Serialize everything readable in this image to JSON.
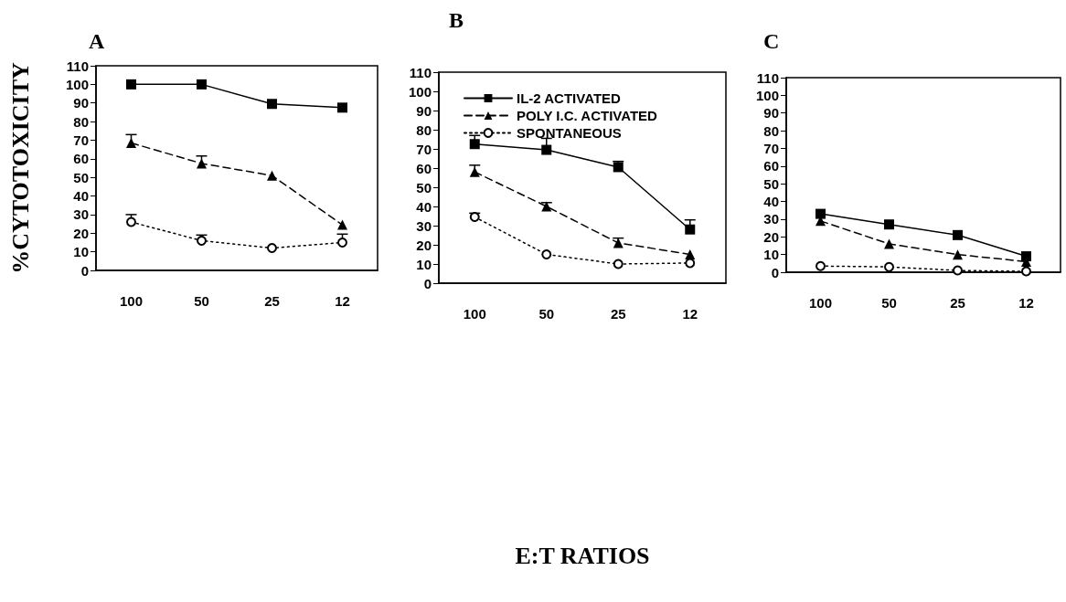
{
  "chart_data": [
    {
      "type": "line",
      "title": "A",
      "ylabel": "%CYTOTOXICITY",
      "categories": [
        "100",
        "50",
        "25",
        "12"
      ],
      "ylim": [
        0,
        110
      ],
      "yticks": [
        0,
        10,
        20,
        30,
        40,
        50,
        60,
        70,
        80,
        90,
        100,
        110
      ],
      "grid": false,
      "legend": false,
      "series": [
        {
          "color": "#000000",
          "marker": "square",
          "line_style": "solid",
          "values": [
            100,
            100,
            89.5,
            87.5
          ]
        },
        {
          "color": "#000000",
          "marker": "triangle",
          "line_style": "dashed",
          "values": [
            68.5,
            57.5,
            51,
            24.5
          ],
          "errors": [
            [
              68.5,
              73
            ],
            [
              57.5,
              61.5
            ],
            null,
            null
          ]
        },
        {
          "color": "#000000",
          "marker": "circle",
          "line_style": "dotted",
          "values": [
            26,
            16,
            12,
            15
          ],
          "errors": [
            [
              26,
              30
            ],
            [
              16,
              19
            ],
            null,
            [
              15,
              19.5
            ]
          ]
        }
      ]
    },
    {
      "type": "line",
      "title": "B",
      "xlabel": "E:T RATIOS",
      "categories": [
        "100",
        "50",
        "25",
        "12"
      ],
      "ylim": [
        0,
        110
      ],
      "yticks": [
        0,
        10,
        20,
        30,
        40,
        50,
        60,
        70,
        80,
        90,
        100,
        110
      ],
      "grid": false,
      "legend": "top left",
      "series": [
        {
          "name": "IL-2 ACTIVATED",
          "color": "#000000",
          "marker": "square",
          "line_style": "solid",
          "values": [
            72.5,
            69.5,
            60.5,
            28
          ],
          "errors": [
            [
              72.5,
              77
            ],
            [
              69.5,
              75.5
            ],
            [
              60.5,
              63.5
            ],
            [
              28,
              33
            ]
          ]
        },
        {
          "name": "POLY I.C. ACTIVATED",
          "color": "#000000",
          "marker": "triangle",
          "line_style": "dashed",
          "values": [
            58,
            40,
            21,
            15
          ],
          "errors": [
            [
              58,
              61.5
            ],
            [
              40,
              42
            ],
            [
              21,
              23.5
            ],
            null
          ]
        },
        {
          "name": "SPONTANEOUS",
          "color": "#000000",
          "marker": "circle",
          "line_style": "dotted",
          "values": [
            34.5,
            15,
            10,
            10.5
          ],
          "errors": [
            [
              34.5,
              36.5
            ],
            null,
            null,
            null
          ]
        }
      ]
    },
    {
      "type": "line",
      "title": "C",
      "categories": [
        "100",
        "50",
        "25",
        "12"
      ],
      "ylim": [
        0,
        110
      ],
      "yticks": [
        0,
        10,
        20,
        30,
        40,
        50,
        60,
        70,
        80,
        90,
        100,
        110
      ],
      "grid": false,
      "legend": false,
      "series": [
        {
          "color": "#000000",
          "marker": "square",
          "line_style": "solid",
          "values": [
            33,
            27,
            21,
            9
          ]
        },
        {
          "color": "#000000",
          "marker": "triangle",
          "line_style": "dashed",
          "values": [
            29,
            16,
            10,
            6
          ]
        },
        {
          "color": "#000000",
          "marker": "circle",
          "line_style": "dotted",
          "values": [
            3.5,
            3,
            1,
            0.5
          ]
        }
      ]
    }
  ]
}
